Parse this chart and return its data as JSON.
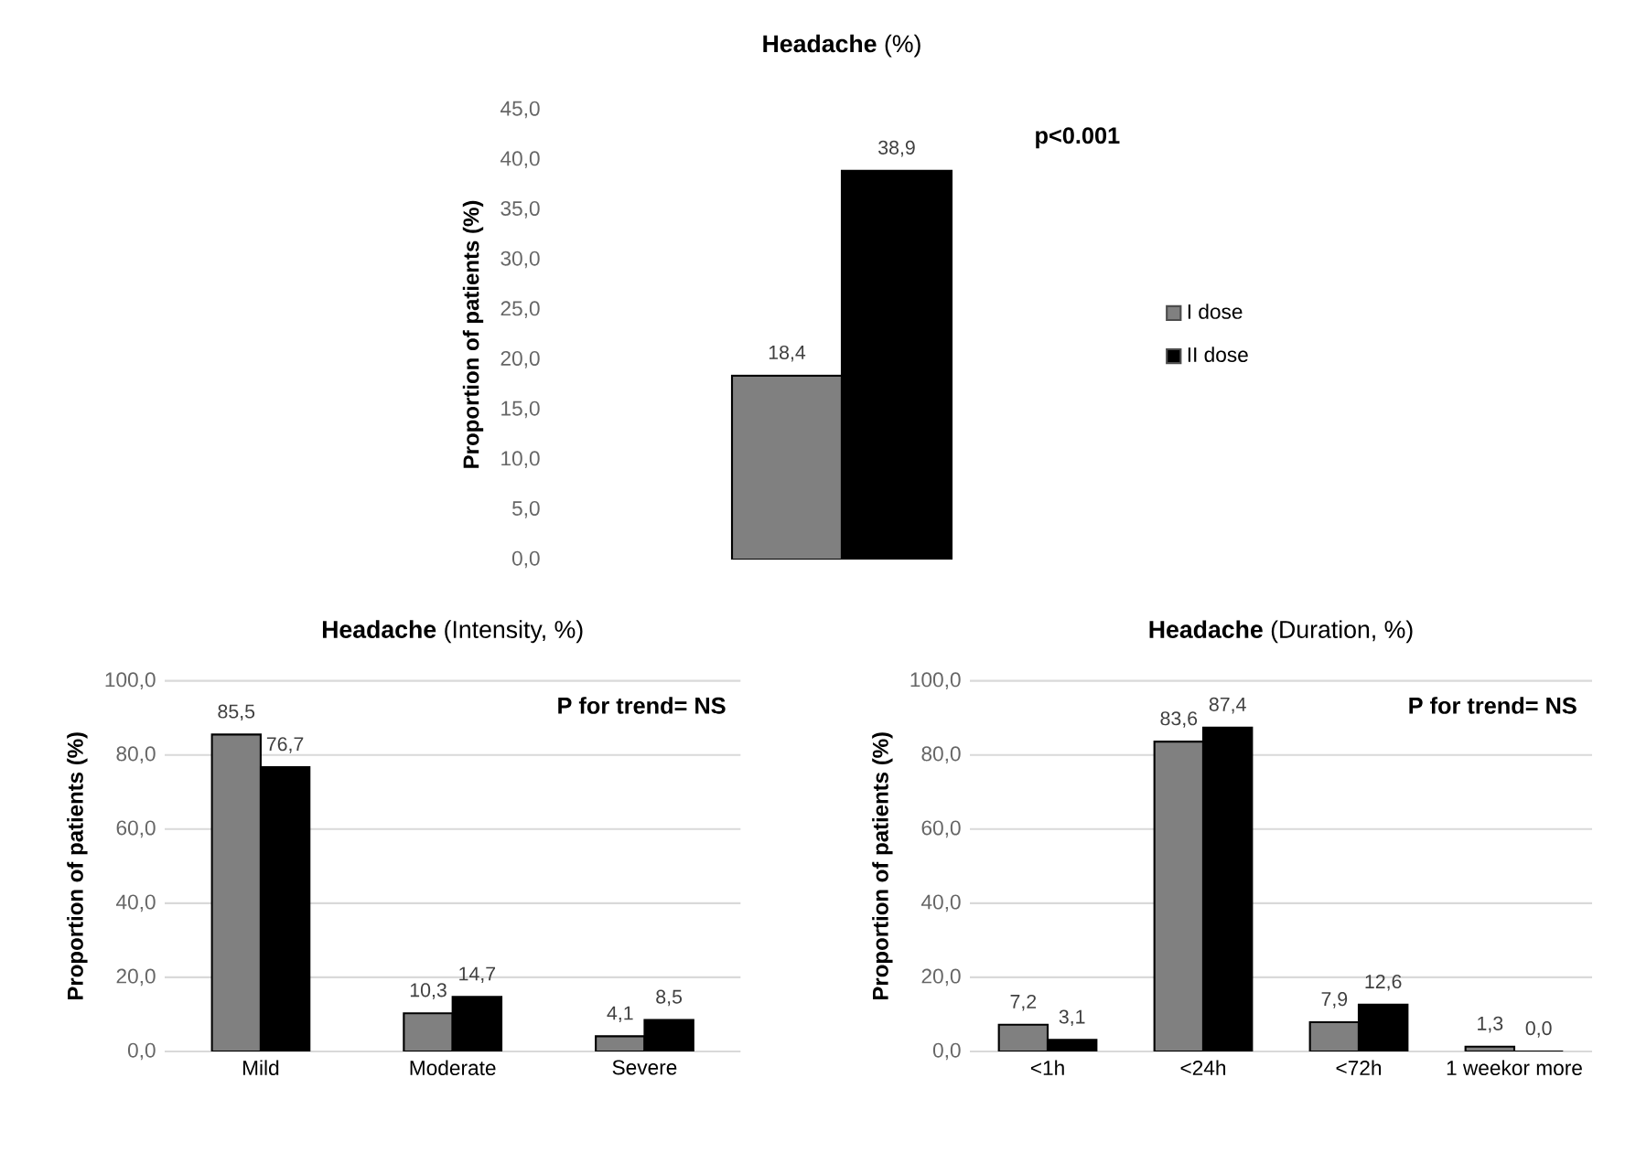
{
  "chart_data": [
    {
      "type": "bar",
      "title": "**Headache** (%)",
      "ylabel": "Proportion of patients (%)",
      "categories": [
        null
      ],
      "series": [
        {
          "name": "I dose",
          "color": "#808080",
          "values": [
            18.4
          ],
          "value_labels": [
            "18,4"
          ]
        },
        {
          "name": "II dose",
          "color": "#000000",
          "values": [
            38.9
          ],
          "value_labels": [
            "38,9"
          ]
        }
      ],
      "ylim": [
        0,
        45
      ],
      "yticks": [
        {
          "value": 0,
          "label": "0,0"
        },
        {
          "value": 5,
          "label": "5,0"
        },
        {
          "value": 10,
          "label": "10,0"
        },
        {
          "value": 15,
          "label": "15,0"
        },
        {
          "value": 20,
          "label": "20,0"
        },
        {
          "value": 25,
          "label": "25,0"
        },
        {
          "value": 30,
          "label": "30,0"
        },
        {
          "value": 35,
          "label": "35,0"
        },
        {
          "value": 40,
          "label": "40,0"
        },
        {
          "value": 45,
          "label": "45,0"
        }
      ],
      "legend": "right",
      "annotations": [
        "p<0.001"
      ]
    },
    {
      "type": "bar",
      "title": "**Headache** (Intensity, %)",
      "ylabel": "Proportion of patients (%)",
      "categories": [
        "Mild",
        "Moderate",
        "Severe"
      ],
      "series": [
        {
          "color": "#808080",
          "values": [
            85.5,
            10.3,
            4.1
          ],
          "value_labels": [
            "85,5",
            "10,3",
            "4,1"
          ]
        },
        {
          "color": "#000000",
          "values": [
            76.7,
            14.7,
            8.5
          ],
          "value_labels": [
            "76,7",
            "14,7",
            "8,5"
          ]
        }
      ],
      "ylim": [
        0,
        100
      ],
      "yticks": [
        {
          "value": 0,
          "label": "0,0"
        },
        {
          "value": 20,
          "label": "20,0"
        },
        {
          "value": 40,
          "label": "40,0"
        },
        {
          "value": 60,
          "label": "60,0"
        },
        {
          "value": 80,
          "label": "80,0"
        },
        {
          "value": 100,
          "label": "100,0"
        }
      ],
      "grid": "y",
      "annotations": [
        "P for trend= NS"
      ]
    },
    {
      "type": "bar",
      "title": "**Headache** (Duration, %)",
      "ylabel": "Proportion of patients (%)",
      "categories": [
        "<1h",
        "<24h",
        "<72h",
        "1 weekor more"
      ],
      "series": [
        {
          "color": "#808080",
          "values": [
            7.2,
            83.6,
            7.9,
            1.3
          ],
          "value_labels": [
            "7,2",
            "83,6",
            "7,9",
            "1,3"
          ]
        },
        {
          "color": "#000000",
          "values": [
            3.1,
            87.4,
            12.6,
            0.0
          ],
          "value_labels": [
            "3,1",
            "87,4",
            "12,6",
            "0,0"
          ]
        }
      ],
      "ylim": [
        0,
        100
      ],
      "yticks": [
        {
          "value": 0,
          "label": "0,0"
        },
        {
          "value": 20,
          "label": "20,0"
        },
        {
          "value": 40,
          "label": "40,0"
        },
        {
          "value": 60,
          "label": "60,0"
        },
        {
          "value": 80,
          "label": "80,0"
        },
        {
          "value": 100,
          "label": "100,0"
        }
      ],
      "grid": "y",
      "annotations": [
        "P for trend= NS"
      ]
    }
  ]
}
